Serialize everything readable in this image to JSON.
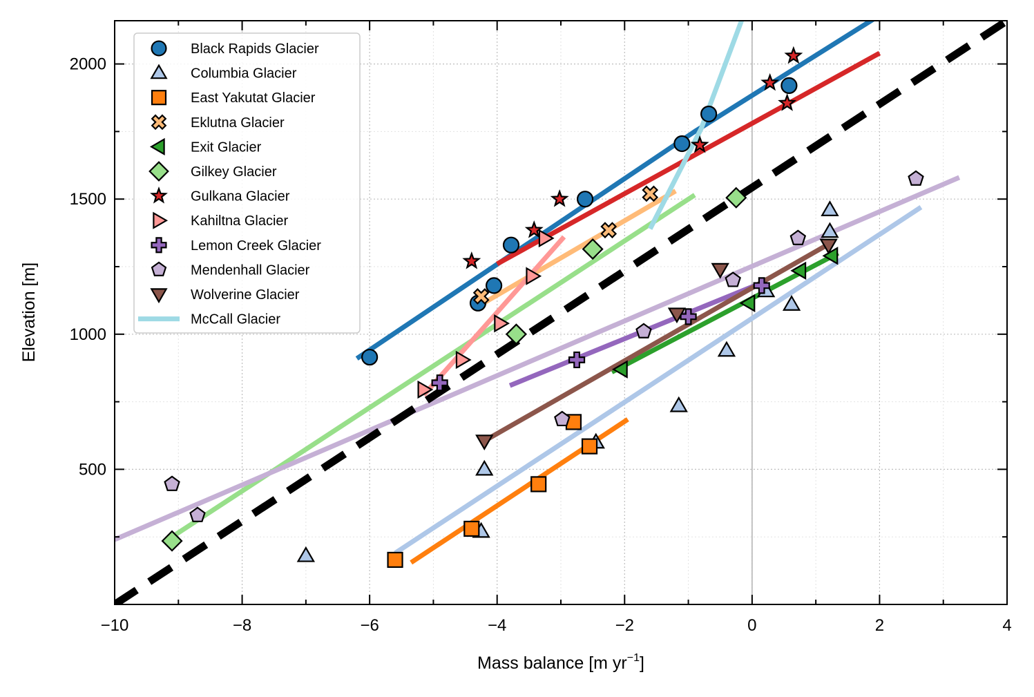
{
  "chart_data": {
    "type": "scatter",
    "xlabel": "Mass balance [m yr",
    "xlabel_sup": "−1",
    "xlabel_end": "]",
    "ylabel": "Elevation [m]",
    "xlim": [
      -10,
      4
    ],
    "ylim": [
      0,
      2160
    ],
    "x_ticks": [
      -10,
      -8,
      -6,
      -4,
      -2,
      0,
      2,
      4
    ],
    "x_tick_labels": [
      "−10",
      "−8",
      "−6",
      "−4",
      "−2",
      "0",
      "2",
      "4"
    ],
    "y_ticks": [
      500,
      1000,
      1500,
      2000
    ],
    "y_tick_labels": [
      "500",
      "1000",
      "1500",
      "2000"
    ],
    "grid": true,
    "legend_position": "upper-left",
    "reference_line": {
      "style": "dashed",
      "color": "#000000",
      "points": [
        [
          -10,
          0
        ],
        [
          4,
          2160
        ]
      ]
    },
    "series": [
      {
        "name": "Black Rapids Glacier",
        "marker": "circle",
        "color": "#1f77b4",
        "points": [
          [
            -6.0,
            915
          ],
          [
            -4.3,
            1115
          ],
          [
            -4.05,
            1180
          ],
          [
            -3.78,
            1330
          ],
          [
            -2.62,
            1500
          ],
          [
            -1.1,
            1705
          ],
          [
            -0.68,
            1815
          ],
          [
            0.58,
            1920
          ]
        ],
        "fit": [
          [
            -6.2,
            910
          ],
          [
            -0.9,
            1750
          ],
          [
            2.0,
            2180
          ]
        ]
      },
      {
        "name": "Columbia Glacier",
        "marker": "triangle-up",
        "color": "#aec7e8",
        "points": [
          [
            -7.0,
            180
          ],
          [
            -4.25,
            270
          ],
          [
            -4.2,
            500
          ],
          [
            -2.45,
            600
          ],
          [
            -1.15,
            735
          ],
          [
            -0.4,
            940
          ],
          [
            0.22,
            1160
          ],
          [
            0.62,
            1110
          ],
          [
            1.22,
            1380
          ],
          [
            1.22,
            1460
          ]
        ],
        "fit": [
          [
            -5.6,
            190
          ],
          [
            2.65,
            1470
          ]
        ]
      },
      {
        "name": "East Yakutat Glacier",
        "marker": "square",
        "color": "#ff7f0e",
        "points": [
          [
            -5.6,
            165
          ],
          [
            -4.4,
            280
          ],
          [
            -3.35,
            445
          ],
          [
            -2.8,
            675
          ],
          [
            -2.55,
            585
          ]
        ],
        "fit": [
          [
            -5.35,
            155
          ],
          [
            -1.95,
            685
          ]
        ]
      },
      {
        "name": "Eklutna Glacier",
        "marker": "x",
        "color": "#ffbb78",
        "points": [
          [
            -4.25,
            1140
          ],
          [
            -2.25,
            1385
          ],
          [
            -1.6,
            1520
          ]
        ],
        "fit": [
          [
            -4.25,
            1110
          ],
          [
            -1.2,
            1530
          ]
        ]
      },
      {
        "name": "Exit Glacier",
        "marker": "triangle-left",
        "color": "#2ca02c",
        "points": [
          [
            -2.05,
            870
          ],
          [
            -0.05,
            1115
          ],
          [
            0.75,
            1235
          ],
          [
            1.25,
            1290
          ]
        ],
        "fit": [
          [
            -2.2,
            860
          ],
          [
            1.35,
            1300
          ]
        ]
      },
      {
        "name": "Gilkey Glacier",
        "marker": "diamond",
        "color": "#98df8a",
        "points": [
          [
            -9.1,
            235
          ],
          [
            -3.7,
            1000
          ],
          [
            -2.5,
            1315
          ],
          [
            -0.25,
            1505
          ]
        ],
        "fit": [
          [
            -9.1,
            250
          ],
          [
            -0.9,
            1515
          ]
        ]
      },
      {
        "name": "Gulkana Glacier",
        "marker": "star",
        "color": "#d62728",
        "points": [
          [
            -4.4,
            1270
          ],
          [
            -3.42,
            1385
          ],
          [
            -3.02,
            1500
          ],
          [
            -0.82,
            1700
          ],
          [
            0.55,
            1855
          ],
          [
            0.28,
            1930
          ],
          [
            0.65,
            2030
          ]
        ],
        "fit": [
          [
            -4.0,
            1260
          ],
          [
            2.0,
            2040
          ]
        ]
      },
      {
        "name": "Kahiltna Glacier",
        "marker": "triangle-right",
        "color": "#ff9896",
        "points": [
          [
            -5.15,
            795
          ],
          [
            -4.55,
            905
          ],
          [
            -3.95,
            1040
          ],
          [
            -3.45,
            1215
          ],
          [
            -3.25,
            1355
          ]
        ],
        "fit": [
          [
            -5.15,
            775
          ],
          [
            -2.95,
            1360
          ]
        ]
      },
      {
        "name": "Lemon Creek Glacier",
        "marker": "plus",
        "color": "#9467bd",
        "points": [
          [
            -4.9,
            820
          ],
          [
            -2.75,
            905
          ],
          [
            -1.0,
            1065
          ],
          [
            0.15,
            1180
          ]
        ],
        "fit": [
          [
            -3.8,
            810
          ],
          [
            0.15,
            1190
          ]
        ]
      },
      {
        "name": "Mendenhall Glacier",
        "marker": "pentagon",
        "color": "#c5b0d5",
        "points": [
          [
            -9.1,
            445
          ],
          [
            -8.7,
            330
          ],
          [
            -2.98,
            685
          ],
          [
            -1.7,
            1010
          ],
          [
            -0.3,
            1200
          ],
          [
            0.72,
            1355
          ],
          [
            2.57,
            1575
          ]
        ],
        "fit": [
          [
            -10.0,
            240
          ],
          [
            3.25,
            1580
          ]
        ]
      },
      {
        "name": "Wolverine Glacier",
        "marker": "triangle-down",
        "color": "#8c564b",
        "points": [
          [
            -4.2,
            605
          ],
          [
            -1.18,
            1075
          ],
          [
            -0.5,
            1240
          ],
          [
            1.2,
            1330
          ]
        ],
        "fit": [
          [
            -4.2,
            605
          ],
          [
            1.25,
            1340
          ]
        ]
      },
      {
        "name": "McCall Glacier",
        "marker": "line",
        "color": "#9edae5",
        "points": [],
        "fit": [
          [
            -1.6,
            1390
          ],
          [
            -0.8,
            1760
          ],
          [
            -0.15,
            2170
          ]
        ]
      }
    ]
  }
}
